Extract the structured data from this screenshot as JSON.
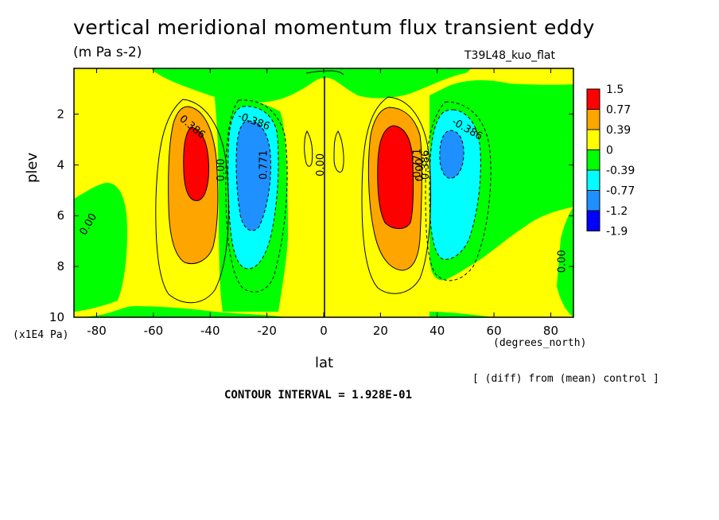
{
  "title": "vertical meridional momentum flux transient eddy",
  "units": "(m Pa s-2)",
  "run_name": "T39L48_kuo_flat",
  "note": "[ (diff) from (mean) control ]",
  "contour_interval": "CONTOUR INTERVAL = 1.928E-01",
  "chart_data": {
    "type": "heatmap",
    "xlabel": "lat",
    "x_unit": "(degrees_north)",
    "ylabel": "plev",
    "y_unit": "(x1E4 Pa)",
    "xlim": [
      -88,
      88
    ],
    "ylim": [
      10,
      0.2
    ],
    "x_ticks": [
      -80,
      -60,
      -40,
      -20,
      0,
      20,
      40,
      60,
      80
    ],
    "y_ticks": [
      2,
      4,
      6,
      8,
      10
    ],
    "legend": {
      "position": "right",
      "labels": [
        "1.5",
        "0.77",
        "0.39",
        "0",
        "-0.39",
        "-0.77",
        "-1.2",
        "-1.9"
      ],
      "colors": [
        "#ff0000",
        "#ffa500",
        "#ffff00",
        "#00ff00",
        "#00ffff",
        "#1e90ff",
        "#0000ff"
      ]
    },
    "contour_labels": [
      {
        "text": "0.386",
        "lat": -47,
        "plev": 2.6,
        "angle": 40
      },
      {
        "text": "-0.386",
        "lat": -25,
        "plev": 2.4,
        "angle": 20
      },
      {
        "text": "0.771",
        "lat": -20,
        "plev": 4.0,
        "angle": -90
      },
      {
        "text": "0.00",
        "lat": -35,
        "plev": 4.2,
        "angle": -90
      },
      {
        "text": "0.00",
        "lat": -82,
        "plev": 6.4,
        "angle": -60
      },
      {
        "text": "0.00",
        "lat": 0,
        "plev": 4.0,
        "angle": -90
      },
      {
        "text": "-0.771",
        "lat": 34,
        "plev": 4.0,
        "angle": -90
      },
      {
        "text": "0.386",
        "lat": 37,
        "plev": 4.0,
        "angle": -90
      },
      {
        "text": "0.00",
        "lat": 35,
        "plev": 4.2,
        "angle": -90
      },
      {
        "text": "-0.386",
        "lat": 50,
        "plev": 2.7,
        "angle": 30
      },
      {
        "text": "0.00",
        "lat": 85,
        "plev": 7.8,
        "angle": -90
      }
    ]
  }
}
